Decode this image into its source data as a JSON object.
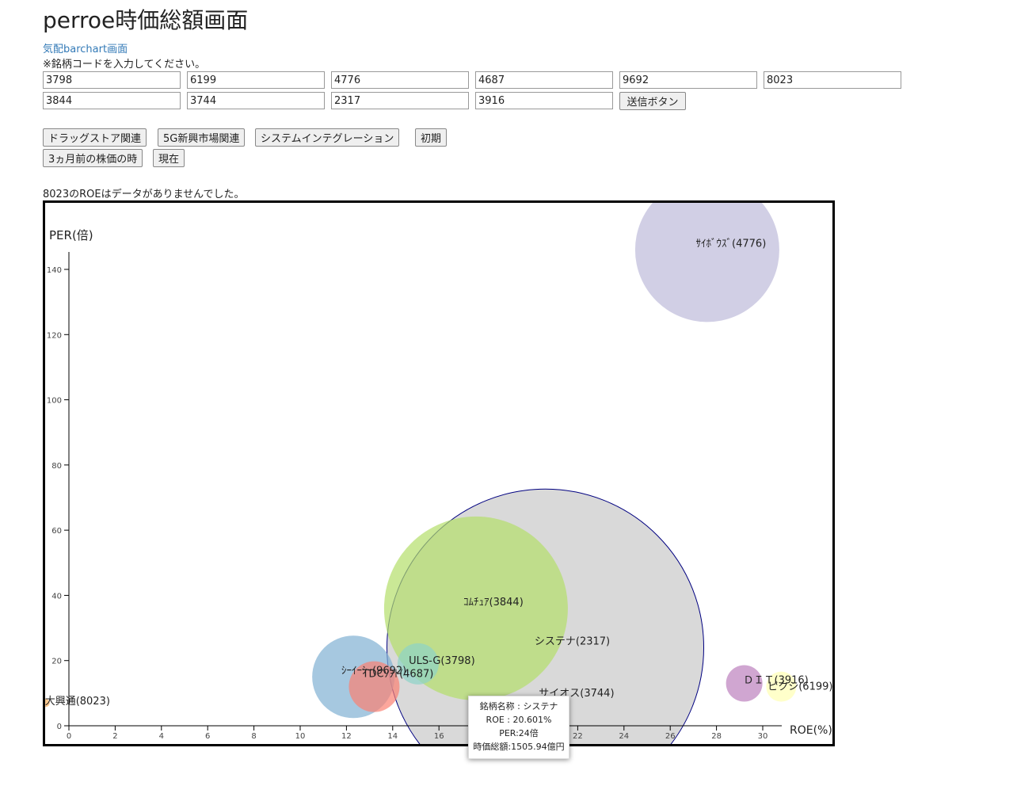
{
  "page": {
    "title": "perroe時価総額画面",
    "link_label": "気配barchart画面",
    "instruction": "※銘柄コードを入力してください。",
    "message": "8023のROEはデータがありませんでした。"
  },
  "form": {
    "codes": [
      "3798",
      "6199",
      "4776",
      "4687",
      "9692",
      "8023",
      "3844",
      "3744",
      "2317",
      "3916"
    ],
    "submit_label": "送信ボタン"
  },
  "preset_buttons": [
    "ドラッグストア関連",
    "5G新興市場関連",
    "システムインテグレーション",
    "初期",
    "3ヵ月前の株価の時",
    "現在"
  ],
  "tooltip": {
    "name": "銘柄名称 : システナ",
    "roe": "ROE : 20.601%",
    "per": "PER:24倍",
    "cap": "時価総額:1505.94億円"
  },
  "chart_data": {
    "type": "scatter",
    "xlabel": "ROE(%)",
    "ylabel": "PER(倍)",
    "xlim": [
      0,
      30
    ],
    "ylim": [
      0,
      145
    ],
    "x_ticks": [
      0,
      2,
      4,
      6,
      8,
      10,
      12,
      14,
      16,
      18,
      20,
      22,
      24,
      26,
      28,
      30
    ],
    "y_ticks": [
      0,
      20,
      40,
      60,
      80,
      100,
      120,
      140
    ],
    "grid": false,
    "points": [
      {
        "label": "システナ(2317)",
        "x": 20.6,
        "y": 24,
        "r": 200,
        "color": "#d9d9d9",
        "stroke": "#000080"
      },
      {
        "label": "ｺﾑﾁｭｱ(3844)",
        "x": 17.6,
        "y": 36,
        "r": 116,
        "color": "#b3de69"
      },
      {
        "label": "ｻｲﾎﾞｳｽﾞ(4776)",
        "x": 27.6,
        "y": 146,
        "r": 91,
        "color": "#bebada"
      },
      {
        "label": "ｼｰｲｰｼｰ(9692)",
        "x": 12.3,
        "y": 15,
        "r": 52,
        "color": "#80b1d3"
      },
      {
        "label": "TDCｿﾌﾄ(4687)",
        "x": 13.2,
        "y": 12,
        "r": 32,
        "color": "#fb8072"
      },
      {
        "label": "ULS-G(3798)",
        "x": 15.1,
        "y": 19,
        "r": 26,
        "color": "#8dd3c7"
      },
      {
        "label": "ＤＩＴ(3916)",
        "x": 29.2,
        "y": 13,
        "r": 23,
        "color": "#bc80bd"
      },
      {
        "label": "ピクシ(6199)",
        "x": 30.8,
        "y": 12,
        "r": 19,
        "color": "#ffffb3"
      },
      {
        "label": "大興通(8023)",
        "x": -1,
        "y": 7,
        "r": 5,
        "color": "#fdb462"
      },
      {
        "label": "サイオス(3744)",
        "x": 20.1,
        "y": 9,
        "r": 0,
        "color": "#fccde5"
      }
    ]
  }
}
